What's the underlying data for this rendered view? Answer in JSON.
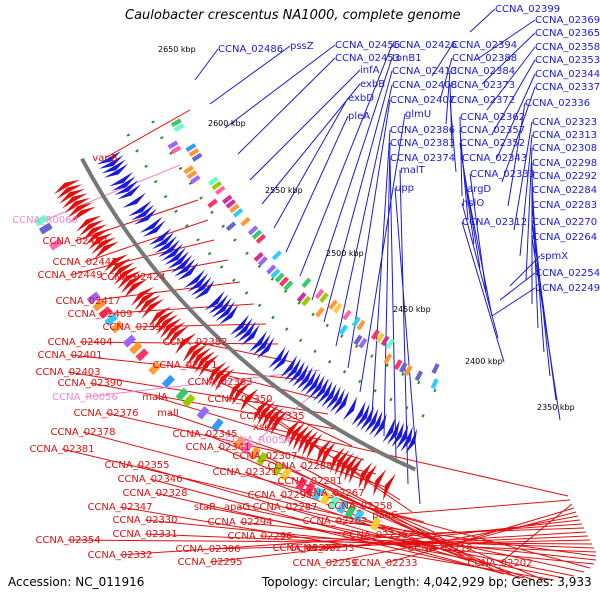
{
  "title": "Caulobacter crescentus NA1000, complete genome",
  "footer": {
    "accession": "Accession: NC_011916",
    "topology": "Topology: circular; Length: 4,042,929 bp; Genes: 3,933"
  },
  "colors": {
    "forward": "#1a1ad6",
    "reverse": "#e01010",
    "rna": "#ee88cc",
    "backbone": "#777777",
    "tick": "#2a8a2a"
  },
  "kbp_ticks": [
    "2650 kbp",
    "2600 kbp",
    "2550 kbp",
    "2500 kbp",
    "2450 kbp",
    "2400 kbp",
    "2350 kbp"
  ],
  "forward_labels": [
    "CCNA_02399",
    "CCNA_02369",
    "CCNA_02365",
    "CCNA_02358",
    "CCNA_02353",
    "CCNA_02344",
    "CCNA_02337",
    "CCNA_02336",
    "CCNA_02323",
    "CCNA_02313",
    "CCNA_02308",
    "CCNA_02298",
    "CCNA_02292",
    "CCNA_02284",
    "CCNA_02283",
    "CCNA_02270",
    "CCNA_02264",
    "spmX",
    "CCNA_02254",
    "CCNA_02249",
    "CCNA_02486",
    "pssZ",
    "CCNA_02456",
    "CCNA_02453",
    "infA",
    "exbB",
    "exbD",
    "pleA",
    "CCNA_02426",
    "tonB1",
    "CCNA_02413",
    "CCNA_02408",
    "CCNA_02407",
    "glmU",
    "CCNA_02386",
    "CCNA_02383",
    "CCNA_02374",
    "malT",
    "upp",
    "CCNA_02394",
    "CCNA_02388",
    "CCNA_02384",
    "CCNA_02373",
    "CCNA_02372",
    "CCNA_02362",
    "CCNA_02357",
    "CCNA_02352",
    "CCNA_02343",
    "CCNA_02333",
    "argD",
    "hslO",
    "CCNA_02312"
  ],
  "reverse_labels": [
    "vanB",
    "CCNA_02452",
    "CCNA_02441",
    "CCNA_02449",
    "CCNA_02424",
    "CCNA_02417",
    "CCNA_02409",
    "CCNA_02397",
    "CCNA_02404",
    "CCNA_02382",
    "CCNA_02401",
    "CCNA_02371",
    "CCNA_02403",
    "CCNA_02390",
    "CCNA_02363",
    "malA",
    "CCNA_02376",
    "malI",
    "CCNA_02350",
    "CCNA_02335",
    "CCNA_02378",
    "CCNA_02345",
    "CCNA_02381",
    "CCNA_02341",
    "CCNA_02307",
    "CCNA_02355",
    "CCNA_02321",
    "CCNA_02288",
    "CCNA_02346",
    "CCNA_02281",
    "CCNA_02328",
    "CCNA_02299",
    "CCNA_02267",
    "CCNA_02347",
    "staR",
    "apaG",
    "CCNA_02287",
    "CCNA_02258",
    "CCNA_02330",
    "CCNA_02294",
    "CCNA_02262",
    "CCNA_02331",
    "CCNA_02296",
    "CCNA_02354",
    "CCNA_02306",
    "CCNA_02277",
    "CCNA_02253",
    "CCNA_02236",
    "CCNA_02332",
    "CCNA_02295",
    "CCNA_02259",
    "CCNA_02233",
    "CCNA_02219",
    "CCNA_02202",
    "panC",
    "xseA"
  ],
  "rna_labels": [
    "CCNA_R0060",
    "CCNA_R0056",
    "CCNA_R0054"
  ]
}
